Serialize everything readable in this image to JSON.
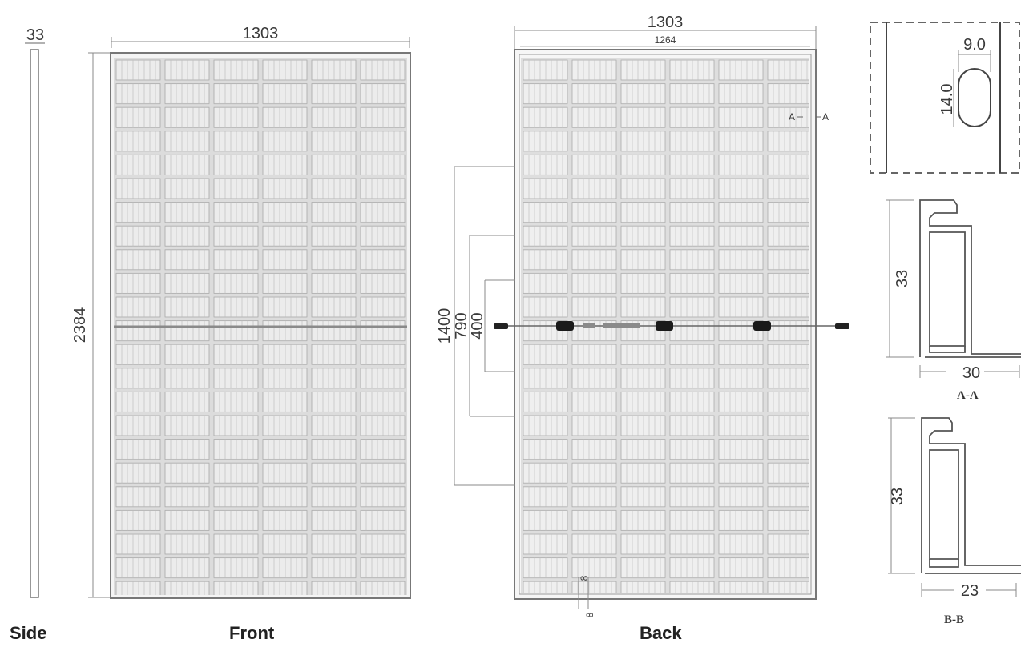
{
  "side": {
    "thickness_label": "33",
    "view_label": "Side"
  },
  "front": {
    "width_label": "1303",
    "height_label": "2384",
    "view_label": "Front"
  },
  "back": {
    "width_label": "1303",
    "inner_width_label": "1264",
    "mount_1400": "1400",
    "mount_790": "790",
    "mount_400": "400",
    "hole_label": "8",
    "section_mark": "A",
    "view_label": "Back"
  },
  "detail": {
    "slot_width": "9.0",
    "slot_height": "14.0"
  },
  "section_aa": {
    "height": "33",
    "width": "30",
    "title": "A-A"
  },
  "section_bb": {
    "height": "33",
    "width": "23",
    "title": "B-B"
  },
  "colors": {
    "line": "#555555",
    "cell": "#e2e2e2",
    "cellBorder": "#9a9a9a"
  }
}
